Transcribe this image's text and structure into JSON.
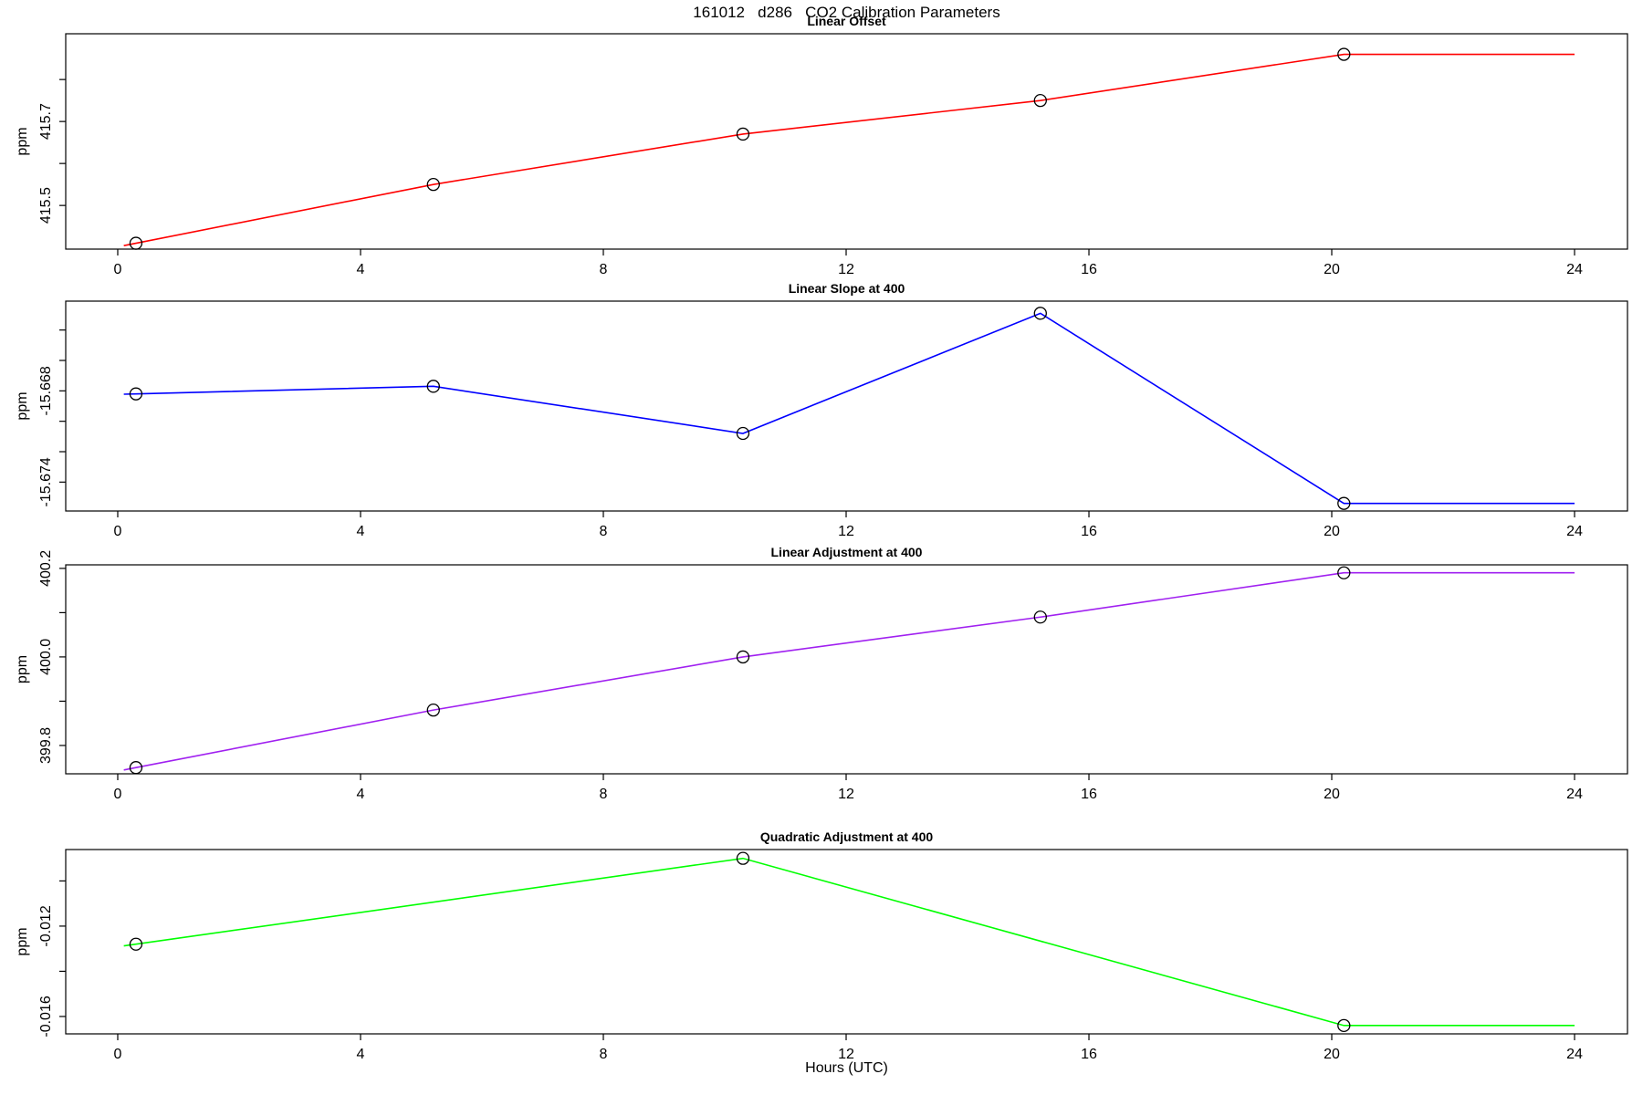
{
  "chart_data": {
    "type": "line",
    "title": "161012   d286   CO2 Calibration Parameters",
    "xlabel": "Hours (UTC)",
    "x_axis": {
      "ticks": [
        0,
        4,
        8,
        12,
        16,
        20,
        24
      ],
      "xlim": [
        -0.857,
        24.872
      ],
      "grid": "off",
      "legend": "none"
    },
    "line_extension": {
      "start_hour": 0.1,
      "end_hour": 24,
      "end_mode": "flat"
    },
    "marker": "open-circle",
    "marker_color": "#000000",
    "panels": [
      {
        "title": "Linear Offset",
        "ylabel": "ppm",
        "color": "#FF0000",
        "x_hours": [
          0.3,
          5.2,
          10.3,
          15.2,
          20.2
        ],
        "values": [
          415.41,
          415.55,
          415.67,
          415.75,
          415.86
        ],
        "ylim": [
          415.396,
          415.909
        ],
        "yticks": [
          {
            "v": 415.5,
            "label": "415.5"
          },
          {
            "v": 415.6,
            "label": ""
          },
          {
            "v": 415.7,
            "label": "415.7"
          },
          {
            "v": 415.8,
            "label": ""
          }
        ]
      },
      {
        "title": "Linear Slope at 400",
        "ylabel": "ppm",
        "color": "#0000FF",
        "x_hours": [
          0.3,
          5.2,
          10.3,
          15.2,
          20.2
        ],
        "values": [
          -15.6682,
          -15.6677,
          -15.6708,
          -15.6629,
          -15.6754
        ],
        "ylim": [
          -15.6759,
          -15.6621
        ],
        "yticks": [
          {
            "v": -15.674,
            "label": "-15.674"
          },
          {
            "v": -15.672,
            "label": ""
          },
          {
            "v": -15.67,
            "label": ""
          },
          {
            "v": -15.668,
            "label": "-15.668"
          },
          {
            "v": -15.666,
            "label": ""
          },
          {
            "v": -15.664,
            "label": ""
          }
        ]
      },
      {
        "title": "Linear Adjustment at 400",
        "ylabel": "ppm",
        "color": "#A020F0",
        "x_hours": [
          0.3,
          5.2,
          10.3,
          15.2,
          20.2
        ],
        "values": [
          399.75,
          399.88,
          400.0,
          400.09,
          400.19
        ],
        "ylim": [
          399.736,
          400.208
        ],
        "yticks": [
          {
            "v": 399.8,
            "label": "399.8"
          },
          {
            "v": 399.9,
            "label": ""
          },
          {
            "v": 400.0,
            "label": "400.0"
          },
          {
            "v": 400.1,
            "label": ""
          },
          {
            "v": 400.2,
            "label": "400.2"
          }
        ]
      },
      {
        "title": "Quadratic Adjustment at 400",
        "ylabel": "ppm",
        "color": "#00FF00",
        "x_hours": [
          0.3,
          10.3,
          20.2
        ],
        "values": [
          -0.0128,
          -0.009,
          -0.0164
        ],
        "ylim": [
          -0.01677,
          -0.00861
        ],
        "yticks": [
          {
            "v": -0.016,
            "label": "-0.016"
          },
          {
            "v": -0.014,
            "label": ""
          },
          {
            "v": -0.012,
            "label": "-0.012"
          },
          {
            "v": -0.01,
            "label": ""
          }
        ]
      }
    ]
  }
}
